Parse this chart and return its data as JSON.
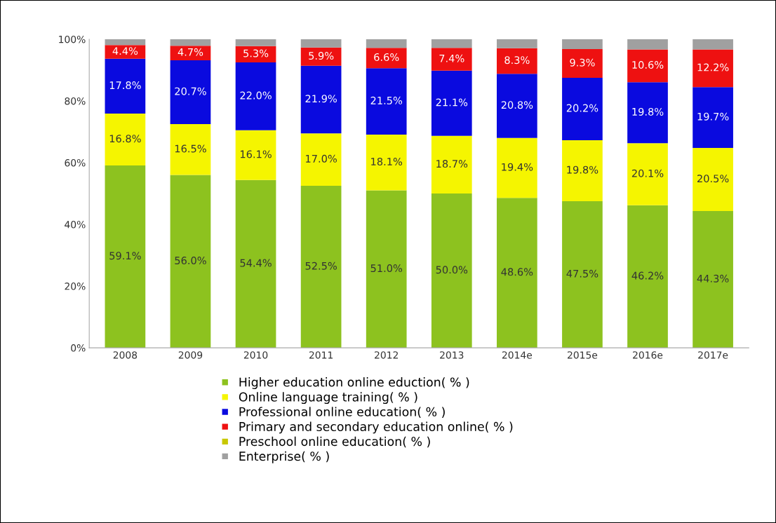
{
  "chart_data": {
    "type": "bar",
    "stacked": true,
    "legend": "bottom",
    "grid": false,
    "categories": [
      "2008",
      "2009",
      "2010",
      "2011",
      "2012",
      "2013",
      "2014e",
      "2015e",
      "2016e",
      "2017e"
    ],
    "ylim": [
      0,
      100
    ],
    "yticks": [
      {
        "value": 0,
        "label": "0%"
      },
      {
        "value": 20,
        "label": "20%"
      },
      {
        "value": 40,
        "label": "40%"
      },
      {
        "value": 60,
        "label": "60%"
      },
      {
        "value": 80,
        "label": "80%"
      },
      {
        "value": 100,
        "label": "100%"
      }
    ],
    "series": [
      {
        "name": "Higher education online eduction( % )",
        "color": "#8dc21f",
        "values": [
          59.1,
          56.0,
          54.4,
          52.5,
          51.0,
          50.0,
          48.6,
          47.5,
          46.2,
          44.3
        ],
        "value_labels": [
          "59.1%",
          "56.0%",
          "54.4%",
          "52.5%",
          "51.0%",
          "50.0%",
          "48.6%",
          "47.5%",
          "46.2%",
          "44.3%"
        ]
      },
      {
        "name": "Online language training( % )",
        "color": "#f5f500",
        "values": [
          16.8,
          16.5,
          16.1,
          17.0,
          18.1,
          18.7,
          19.4,
          19.8,
          20.1,
          20.5
        ],
        "value_labels": [
          "16.8%",
          "16.5%",
          "16.1%",
          "17.0%",
          "18.1%",
          "18.7%",
          "19.4%",
          "19.8%",
          "20.1%",
          "20.5%"
        ]
      },
      {
        "name": "Professional online education( % )",
        "color": "#0a0adf",
        "values": [
          17.8,
          20.7,
          22.0,
          21.9,
          21.5,
          21.1,
          20.8,
          20.2,
          19.8,
          19.7
        ],
        "value_labels": [
          "17.8%",
          "20.7%",
          "22.0%",
          "21.9%",
          "21.5%",
          "21.1%",
          "20.8%",
          "20.2%",
          "19.8%",
          "19.7%"
        ]
      },
      {
        "name": "Primary and secondary education online( % )",
        "color": "#ee1111",
        "values": [
          4.4,
          4.7,
          5.3,
          5.9,
          6.6,
          7.4,
          8.3,
          9.3,
          10.6,
          12.2
        ],
        "value_labels": [
          "4.4%",
          "4.7%",
          "5.3%",
          "5.9%",
          "6.6%",
          "7.4%",
          "8.3%",
          "9.3%",
          "10.6%",
          "12.2%"
        ]
      },
      {
        "name": "Preschool online education( % )",
        "color": "#c8c800",
        "values": [
          null,
          null,
          null,
          null,
          null,
          null,
          null,
          null,
          null,
          null
        ]
      },
      {
        "name": "Enterprise( % )",
        "color": "#a0a0a0",
        "values": [
          1.9,
          2.1,
          2.2,
          2.7,
          2.8,
          2.8,
          2.9,
          3.2,
          3.3,
          3.3
        ]
      }
    ]
  }
}
